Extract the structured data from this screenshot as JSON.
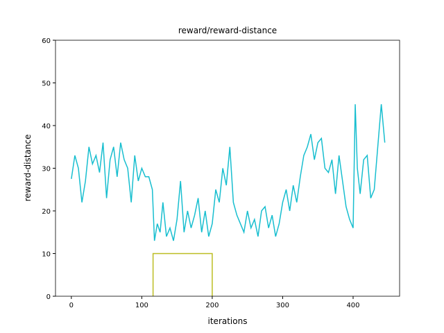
{
  "chart_data": {
    "type": "line",
    "title": "reward/reward-distance",
    "xlabel": "iterations",
    "ylabel": "reward-distance",
    "xlim": [
      -22.5,
      466
    ],
    "ylim": [
      0,
      60
    ],
    "xticks": [
      0,
      100,
      200,
      300,
      400
    ],
    "yticks": [
      0,
      10,
      20,
      30,
      40,
      50,
      60
    ],
    "series": [
      {
        "color": "#17becf",
        "x": [
          0,
          5,
          10,
          15,
          20,
          25,
          30,
          35,
          40,
          45,
          50,
          55,
          60,
          65,
          70,
          75,
          80,
          85,
          90,
          95,
          100,
          105,
          110,
          115,
          118,
          122,
          126,
          130,
          135,
          140,
          145,
          150,
          155,
          160,
          165,
          170,
          175,
          180,
          185,
          190,
          195,
          200,
          205,
          210,
          215,
          220,
          225,
          230,
          235,
          240,
          245,
          250,
          255,
          260,
          265,
          270,
          275,
          280,
          285,
          290,
          295,
          300,
          305,
          310,
          315,
          320,
          325,
          330,
          335,
          340,
          345,
          350,
          355,
          360,
          365,
          370,
          375,
          380,
          385,
          390,
          395,
          400,
          403,
          406,
          410,
          415,
          420,
          425,
          430,
          435,
          440,
          445
        ],
        "values": [
          27.5,
          33,
          30,
          22,
          27,
          35,
          31,
          33,
          29,
          36,
          23,
          32,
          35,
          28,
          36,
          32,
          30,
          22,
          33,
          27,
          30,
          28,
          28,
          25,
          13,
          17,
          15,
          22,
          14,
          16,
          13,
          18,
          27,
          15,
          20,
          16,
          19,
          23,
          15,
          20,
          14,
          17,
          25,
          22,
          30,
          26,
          35,
          22,
          19,
          17,
          15,
          20,
          16,
          18,
          14,
          20,
          21,
          16,
          19,
          14,
          17,
          22,
          25,
          20,
          26,
          22,
          28,
          33,
          35,
          38,
          32,
          36,
          37,
          30,
          29,
          32,
          24,
          33,
          27,
          21,
          18,
          16,
          45,
          30,
          24,
          32,
          33,
          23,
          25,
          35,
          45,
          36
        ]
      },
      {
        "color": "#bcbd22",
        "x": [
          116,
          116,
          200,
          200
        ],
        "values": [
          0,
          10,
          10,
          0
        ]
      }
    ]
  }
}
